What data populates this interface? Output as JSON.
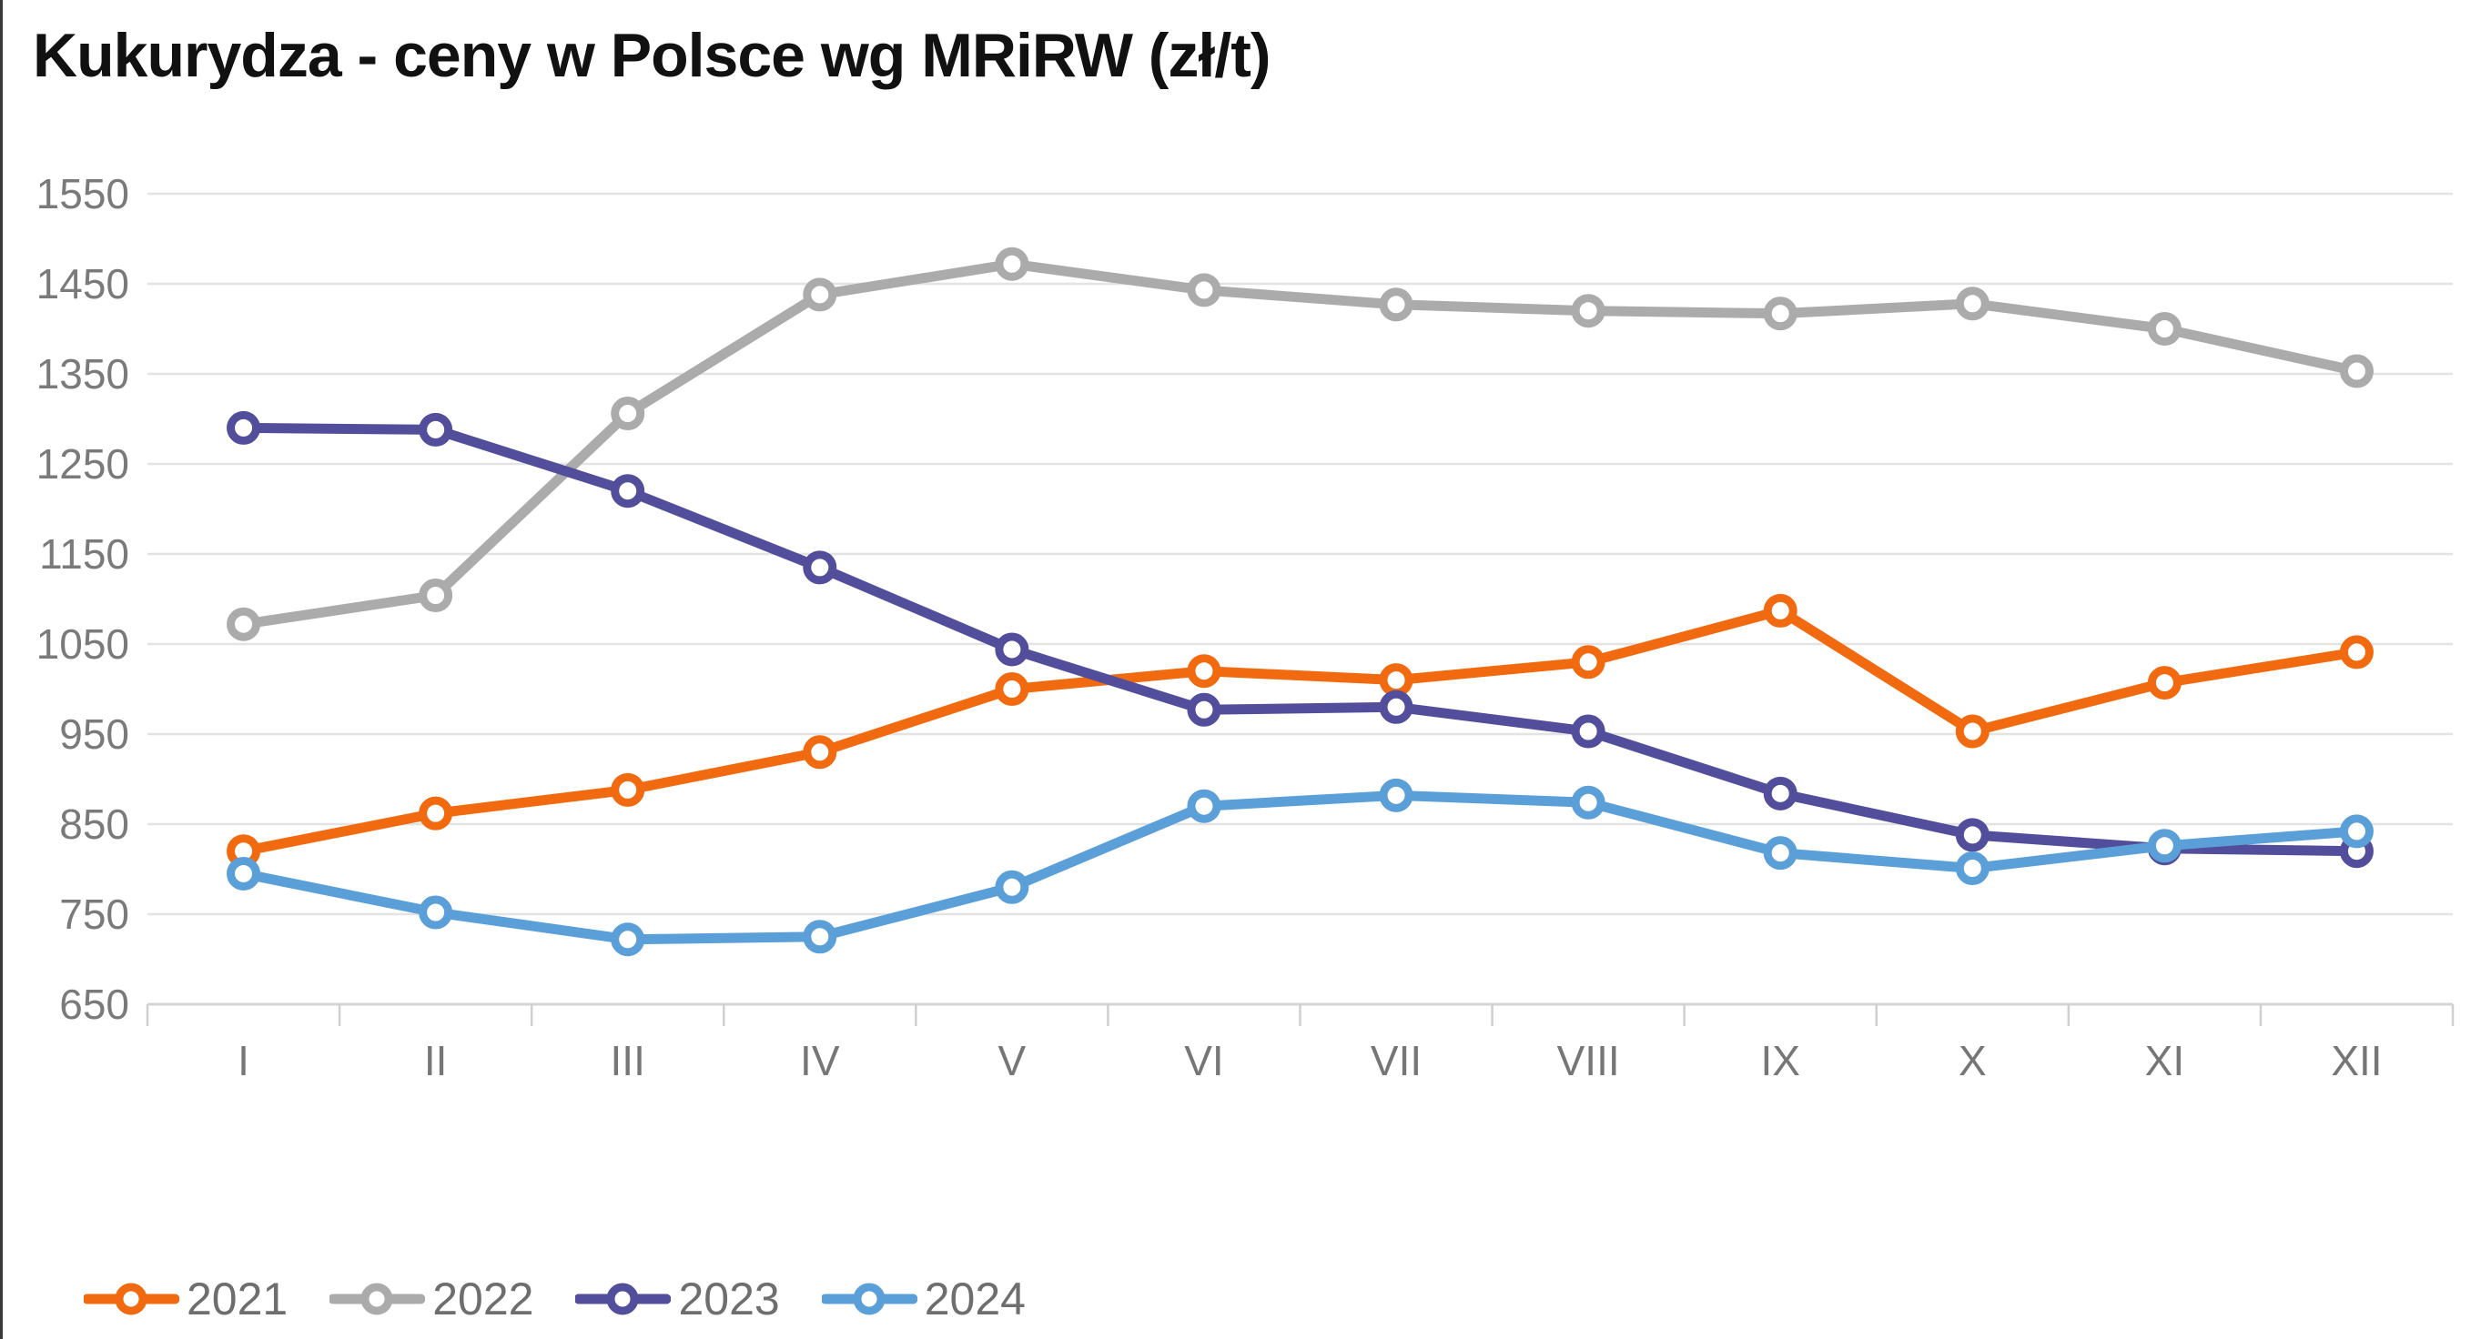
{
  "title": "Kukurydza - ceny w Polsce wg MRiRW (zł/t)",
  "chart_data": {
    "type": "line",
    "title": "Kukurydza - ceny w Polsce wg MRiRW (zł/t)",
    "categories": [
      "I",
      "II",
      "III",
      "IV",
      "V",
      "VI",
      "VII",
      "VIII",
      "IX",
      "X",
      "XI",
      "XII"
    ],
    "series": [
      {
        "name": "2021",
        "color": "#F26A10",
        "values": [
          820,
          862,
          888,
          930,
          1000,
          1020,
          1010,
          1030,
          1087,
          953,
          1007,
          1041
        ]
      },
      {
        "name": "2022",
        "color": "#ABABAB",
        "values": [
          1072,
          1104,
          1306,
          1438,
          1472,
          1443,
          1427,
          1420,
          1417,
          1428,
          1400,
          1353
        ]
      },
      {
        "name": "2023",
        "color": "#524E9B",
        "values": [
          1290,
          1288,
          1220,
          1135,
          1044,
          977,
          980,
          953,
          884,
          838,
          823,
          820
        ]
      },
      {
        "name": "2024",
        "color": "#5B9FD8",
        "values": [
          795,
          752,
          722,
          725,
          780,
          870,
          882,
          874,
          818,
          801,
          826,
          842
        ]
      }
    ],
    "ylim": [
      650,
      1550
    ],
    "y_ticks": [
      1550,
      1450,
      1350,
      1250,
      1150,
      1050,
      950,
      850,
      750,
      650
    ],
    "xlabel": "",
    "ylabel": "",
    "grid": true,
    "legend_position": "bottom-left"
  },
  "style": {
    "background": "#FFFFFF",
    "grid_color": "#E3E3E3",
    "axis_color": "#D4D4D4",
    "tick_color": "#CFCFCF",
    "axis_text_color": "#7A7A7A",
    "month_text_color": "#767676",
    "legend_text_color": "#6E6E6E",
    "title_color": "#111111",
    "left_border_color": "#3A3A3A"
  }
}
